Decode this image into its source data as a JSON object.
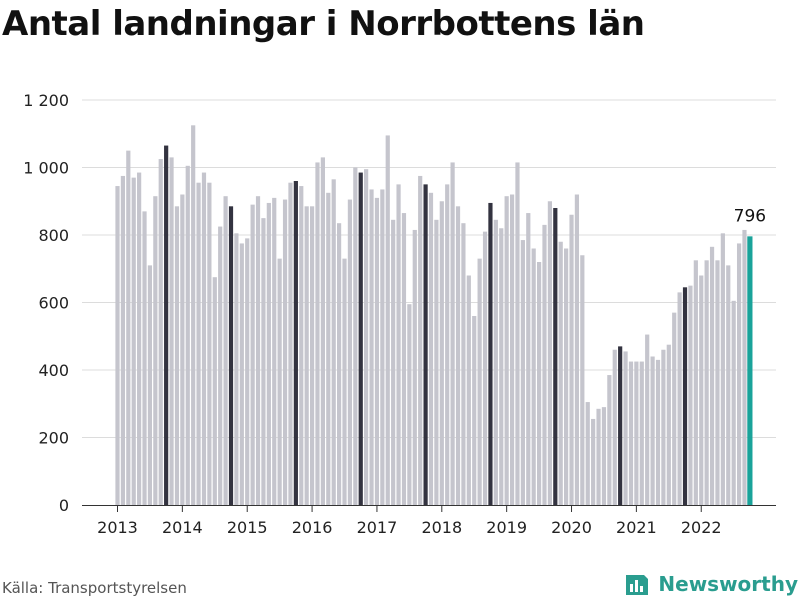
{
  "title": "Antal landningar i Norrbottens län",
  "source": "Källa: Transportstyrelsen",
  "brand": {
    "name": "Newsworthy",
    "icon": "newsworthy-logo-icon"
  },
  "colors": {
    "bar": "#c5c5cd",
    "highlight": "#333340",
    "latest": "#1aa39a",
    "grid": "#dcdcdc",
    "brand": "#2a9d8f"
  },
  "chart_data": {
    "type": "bar",
    "title": "Antal landningar i Norrbottens län",
    "xlabel": "",
    "ylabel": "",
    "ylim": [
      0,
      1200
    ],
    "yticks": [
      0,
      200,
      400,
      600,
      800,
      1000,
      1200
    ],
    "ytick_labels": [
      "0",
      "200",
      "400",
      "600",
      "800",
      "1 000",
      "1 200"
    ],
    "xtick_labels": [
      "2013",
      "2014",
      "2015",
      "2016",
      "2017",
      "2018",
      "2019",
      "2020",
      "2021",
      "2022"
    ],
    "start": "2013-01",
    "end": "2022-10",
    "grid": true,
    "highlight_month": "October",
    "values": [
      945,
      975,
      1050,
      970,
      985,
      870,
      710,
      915,
      1025,
      1065,
      1030,
      885,
      920,
      1005,
      1125,
      955,
      985,
      955,
      675,
      825,
      915,
      885,
      805,
      775,
      790,
      890,
      915,
      850,
      895,
      910,
      730,
      905,
      955,
      960,
      945,
      885,
      885,
      1015,
      1030,
      925,
      965,
      835,
      730,
      905,
      1000,
      985,
      995,
      935,
      910,
      935,
      1095,
      845,
      950,
      865,
      595,
      815,
      975,
      950,
      925,
      845,
      900,
      950,
      1015,
      885,
      835,
      680,
      560,
      730,
      810,
      895,
      845,
      820,
      915,
      920,
      1015,
      785,
      865,
      760,
      720,
      830,
      900,
      880,
      780,
      760,
      860,
      920,
      740,
      305,
      255,
      285,
      290,
      385,
      460,
      470,
      455,
      425,
      425,
      425,
      505,
      440,
      430,
      460,
      475,
      570,
      630,
      645,
      650,
      725,
      680,
      725,
      765,
      725,
      805,
      710,
      605,
      775,
      815,
      796
    ],
    "annotations": [
      {
        "month": "2022-10",
        "value": 796,
        "text": "796"
      }
    ]
  }
}
